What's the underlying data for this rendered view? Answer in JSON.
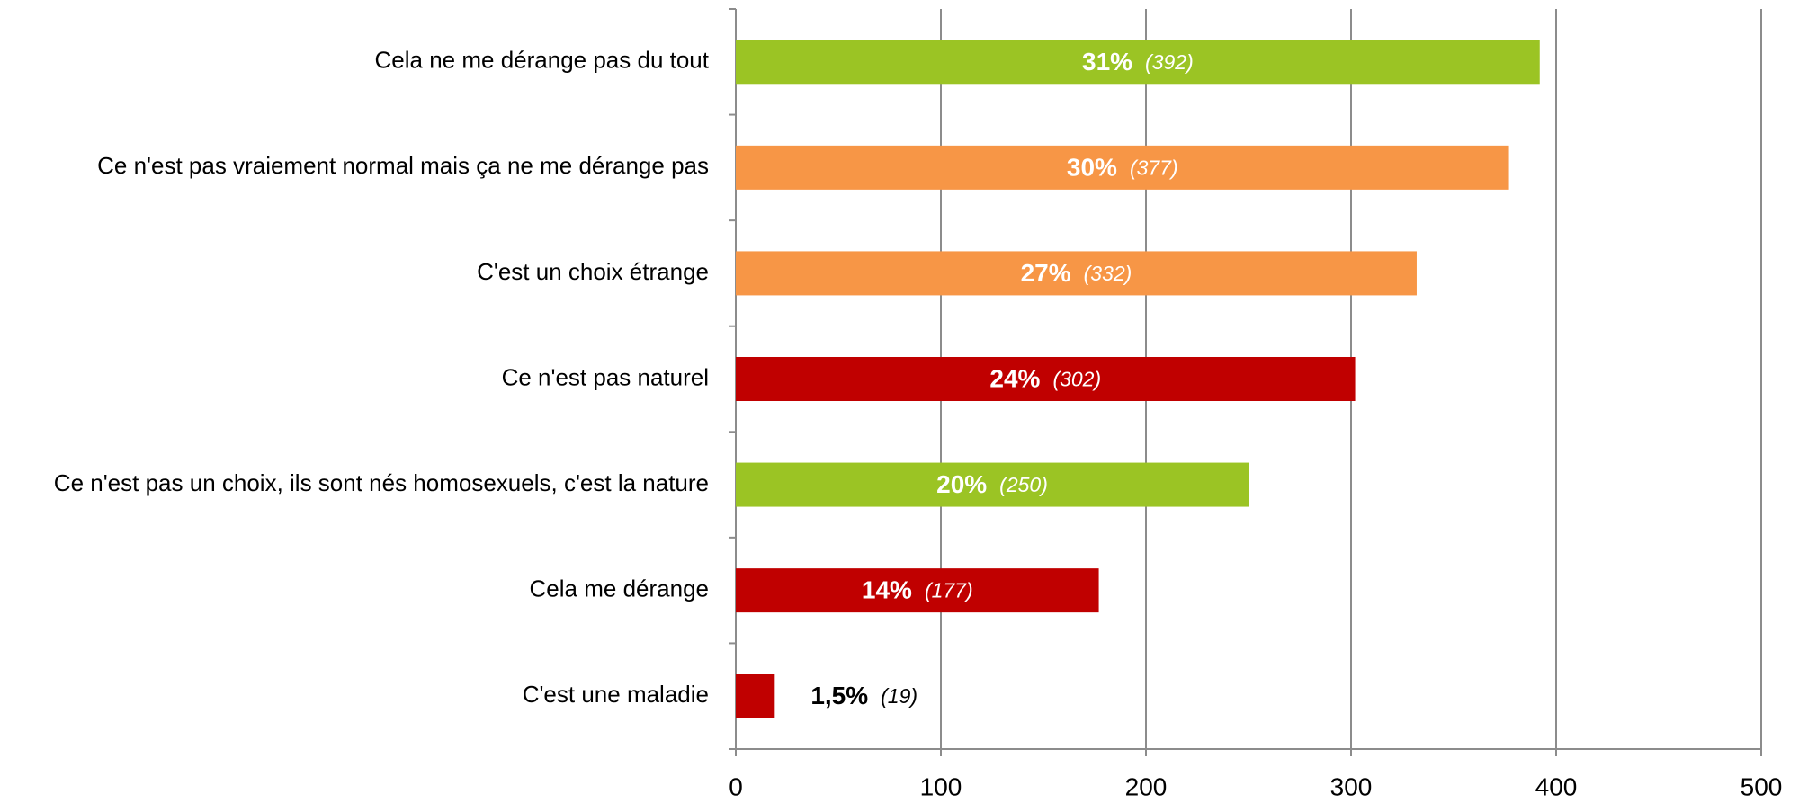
{
  "chart_data": {
    "type": "hbar",
    "categories": [
      "Cela ne me dérange pas du tout",
      "Ce n'est pas vraiement normal mais ça ne me dérange pas",
      "C'est un choix étrange",
      "Ce n'est pas naturel",
      "Ce n'est pas un choix, ils sont nés homosexuels, c'est la nature",
      "Cela me dérange",
      "C'est une maladie"
    ],
    "values": [
      392,
      377,
      332,
      302,
      250,
      177,
      19
    ],
    "value_labels": [
      "(392)",
      "(377)",
      "(332)",
      "(302)",
      "(250)",
      "(177)",
      "(19)"
    ],
    "percent_labels": [
      "31%",
      "30%",
      "27%",
      "24%",
      "20%",
      "14%",
      "1,5%"
    ],
    "colors": [
      "#9bc424",
      "#f79646",
      "#f79646",
      "#c00000",
      "#9bc424",
      "#c00000",
      "#c00000"
    ],
    "xlim": [
      0,
      500
    ],
    "xticks": [
      0,
      100,
      200,
      300,
      400,
      500
    ],
    "grid": true
  }
}
